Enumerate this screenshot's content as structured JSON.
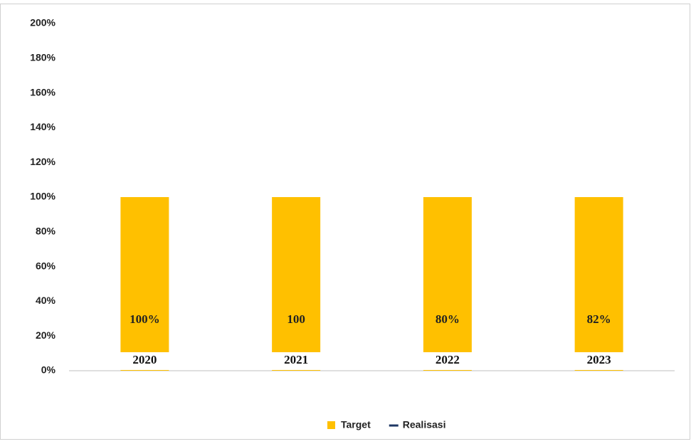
{
  "chart_data": {
    "type": "bar",
    "categories": [
      "2020",
      "2021",
      "2022",
      "2023"
    ],
    "series": [
      {
        "name": "Target",
        "color": "#ffc000",
        "values": [
          100,
          100,
          100,
          100
        ]
      },
      {
        "name": "Realisasi",
        "color": "#1f3864",
        "values": [
          100,
          100,
          80,
          82
        ],
        "value_labels": [
          "100%",
          "100",
          "80%",
          "82%"
        ]
      }
    ],
    "ylim": [
      0,
      200
    ],
    "yticks": [
      {
        "value": 0,
        "label": "0%"
      },
      {
        "value": 20,
        "label": "20%"
      },
      {
        "value": 40,
        "label": "40%"
      },
      {
        "value": 60,
        "label": "60%"
      },
      {
        "value": 80,
        "label": "80%"
      },
      {
        "value": 100,
        "label": "100%"
      },
      {
        "value": 120,
        "label": "120%"
      },
      {
        "value": 140,
        "label": "140%"
      },
      {
        "value": 160,
        "label": "160%"
      },
      {
        "value": 180,
        "label": "180%"
      },
      {
        "value": 200,
        "label": "200%"
      }
    ],
    "grid": false,
    "legend": "bottom"
  }
}
